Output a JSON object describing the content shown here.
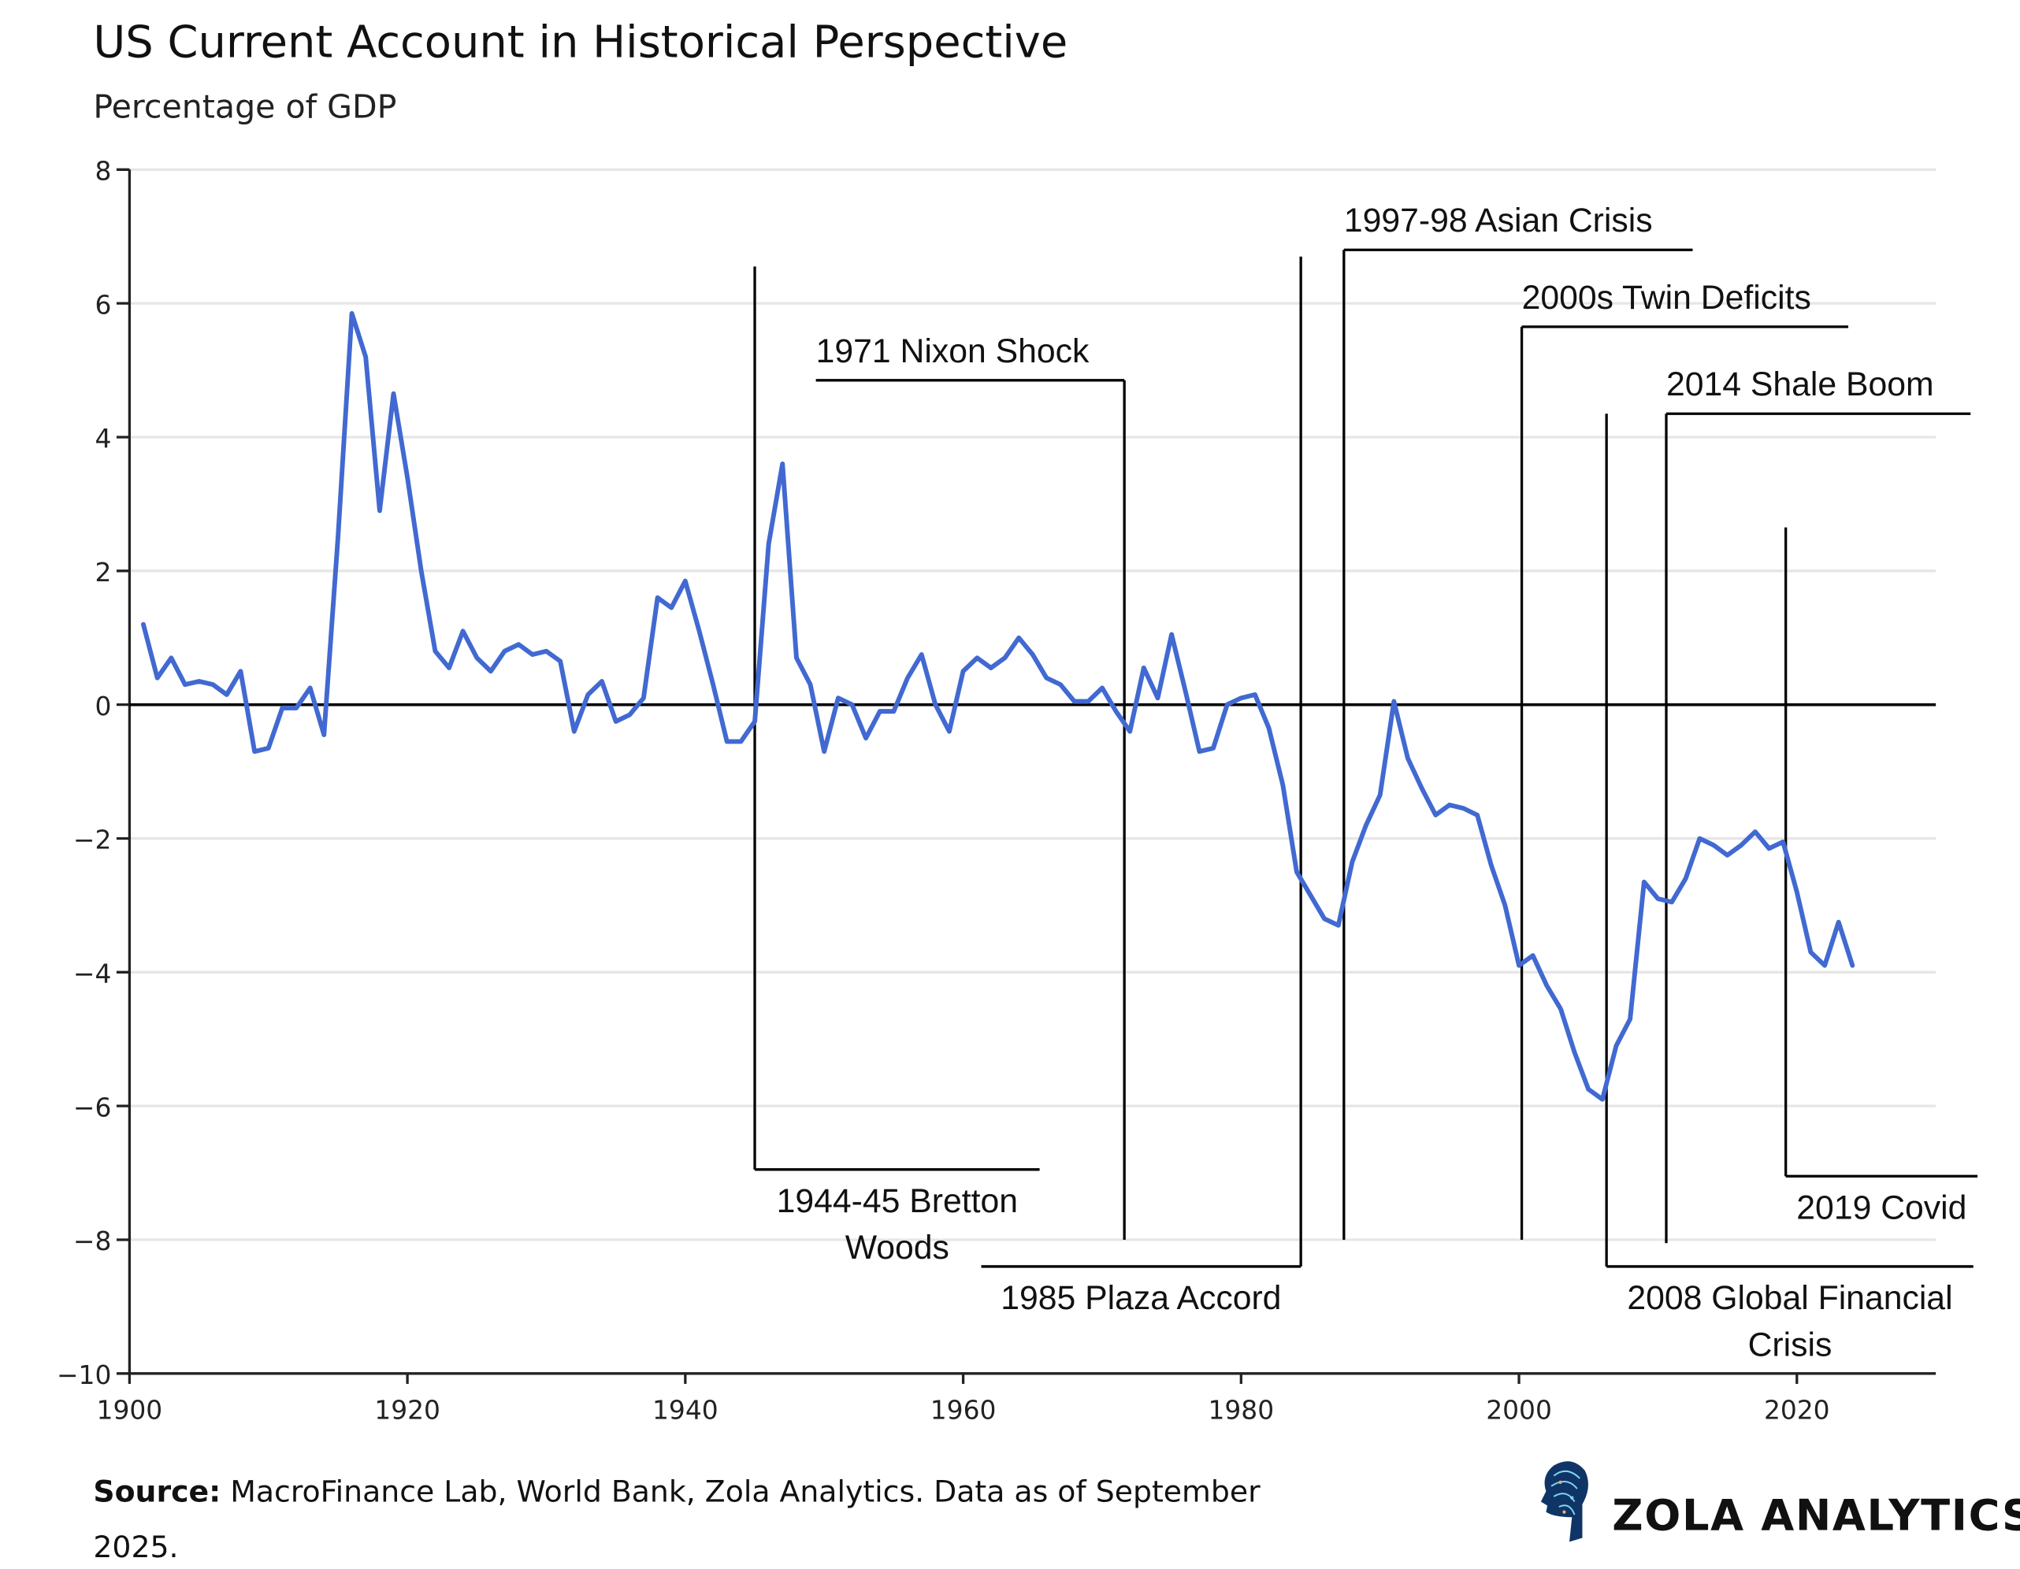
{
  "header": {
    "title": "US Current Account in Historical Perspective",
    "subtitle": "Percentage of GDP"
  },
  "footer": {
    "source_label": "Source:",
    "source_line1": " MacroFinance Lab, World Bank, Zola Analytics. Data as of September",
    "source_line2": "2025.",
    "brand": "ZOLA ANALYTICS",
    "logo_icon": "head-circuit-icon"
  },
  "chart_data": {
    "type": "line",
    "title": "US Current Account in Historical Perspective",
    "subtitle": "Percentage of GDP",
    "xlabel": "",
    "ylabel": "",
    "xlim": [
      1900,
      2030
    ],
    "ylim": [
      -10,
      8
    ],
    "xticks": [
      "1900",
      "1920",
      "1940",
      "1960",
      "1980",
      "2000",
      "2020"
    ],
    "yticks": [
      "8",
      "6",
      "4",
      "2",
      "0",
      "−2",
      "−4",
      "−6",
      "−8",
      "−10"
    ],
    "grid": "horizontal",
    "zero_line": true,
    "line_color": "#4169d1",
    "x": [
      1901,
      1902,
      1903,
      1904,
      1905,
      1906,
      1907,
      1908,
      1909,
      1910,
      1911,
      1912,
      1913,
      1914,
      1915,
      1916,
      1917,
      1918,
      1919,
      1920,
      1921,
      1922,
      1923,
      1924,
      1925,
      1926,
      1927,
      1928,
      1929,
      1930,
      1931,
      1932,
      1933,
      1934,
      1935,
      1936,
      1937,
      1938,
      1939,
      1940,
      1941,
      1942,
      1943,
      1944,
      1945,
      1946,
      1947,
      1948,
      1949,
      1950,
      1951,
      1952,
      1953,
      1954,
      1955,
      1956,
      1957,
      1958,
      1959,
      1960,
      1961,
      1962,
      1963,
      1964,
      1965,
      1966,
      1967,
      1968,
      1969,
      1970,
      1971,
      1972,
      1973,
      1974,
      1975,
      1976,
      1977,
      1978,
      1979,
      1980,
      1981,
      1982,
      1983,
      1984,
      1985,
      1986,
      1987,
      1988,
      1989,
      1990,
      1991,
      1992,
      1993,
      1994,
      1995,
      1996,
      1997,
      1998,
      1999,
      2000,
      2001,
      2002,
      2003,
      2004,
      2005,
      2006,
      2007,
      2008,
      2009,
      2010,
      2011,
      2012,
      2013,
      2014,
      2015,
      2016,
      2017,
      2018,
      2019,
      2020,
      2021,
      2022,
      2023,
      2024
    ],
    "values": [
      1.2,
      0.4,
      0.7,
      0.3,
      0.35,
      0.3,
      0.15,
      0.5,
      -0.7,
      -0.65,
      -0.05,
      -0.05,
      0.25,
      -0.45,
      2.5,
      5.85,
      5.2,
      2.9,
      4.65,
      3.4,
      2.0,
      0.8,
      0.55,
      1.1,
      0.7,
      0.5,
      0.8,
      0.9,
      0.75,
      0.8,
      0.65,
      -0.4,
      0.15,
      0.35,
      -0.25,
      -0.15,
      0.1,
      1.6,
      1.45,
      1.85,
      1.1,
      0.3,
      -0.55,
      -0.55,
      -0.25,
      2.4,
      3.6,
      0.7,
      0.3,
      -0.7,
      0.1,
      0.0,
      -0.5,
      -0.1,
      -0.1,
      0.4,
      0.75,
      0.0,
      -0.4,
      0.5,
      0.7,
      0.55,
      0.7,
      1.0,
      0.75,
      0.4,
      0.3,
      0.05,
      0.05,
      0.25,
      -0.1,
      -0.4,
      0.55,
      0.1,
      1.05,
      0.2,
      -0.7,
      -0.65,
      0.0,
      0.1,
      0.15,
      -0.35,
      -1.2,
      -2.5,
      -2.85,
      -3.2,
      -3.3,
      -2.35,
      -1.8,
      -1.35,
      0.05,
      -0.8,
      -1.25,
      -1.65,
      -1.5,
      -1.55,
      -1.65,
      -2.4,
      -3.0,
      -3.9,
      -3.75,
      -4.2,
      -4.55,
      -5.2,
      -5.75,
      -5.9,
      -5.1,
      -4.7,
      -2.65,
      -2.9,
      -2.95,
      -2.6,
      -2.0,
      -2.1,
      -2.25,
      -2.1,
      -1.9,
      -2.15,
      -2.05,
      -2.8,
      -3.7,
      -3.9,
      -3.25,
      -3.9
    ],
    "annotations": [
      {
        "lines": [
          "1944-45 Bretton",
          "Woods"
        ],
        "x": 1945,
        "y_from": 6.55,
        "y_to": -6.95,
        "bar_to_x": 1965.5,
        "position": "below"
      },
      {
        "lines": [
          "1971 Nixon Shock"
        ],
        "x": 1971.6,
        "y_from": -8.0,
        "y_to": 4.85,
        "bar_to_x": 1949.4,
        "position": "above"
      },
      {
        "lines": [
          "1985 Plaza Accord"
        ],
        "x": 1984.3,
        "y_from": 6.7,
        "y_to": -8.4,
        "bar_to_x": 1961.3,
        "position": "below"
      },
      {
        "lines": [
          "1997-98 Asian Crisis"
        ],
        "x": 1987.4,
        "y_from": -8.0,
        "y_to": 6.8,
        "bar_to_x": 2012.5,
        "position": "above"
      },
      {
        "lines": [
          "2000s Twin Deficits"
        ],
        "x": 2000.2,
        "y_from": -8.0,
        "y_to": 5.65,
        "bar_to_x": 2023.7,
        "position": "above"
      },
      {
        "lines": [
          "2008 Global Financial",
          "Crisis"
        ],
        "x": 2006.3,
        "y_from": 4.35,
        "y_to": -8.4,
        "bar_to_x": 2032.7,
        "position": "below"
      },
      {
        "lines": [
          "2014 Shale Boom"
        ],
        "x": 2010.6,
        "y_from": -8.05,
        "y_to": 4.35,
        "bar_to_x": 2032.5,
        "position": "above"
      },
      {
        "lines": [
          "2019 Covid"
        ],
        "x": 2019.2,
        "y_from": 2.65,
        "y_to": -7.05,
        "bar_to_x": 2033.0,
        "position": "below"
      }
    ]
  }
}
